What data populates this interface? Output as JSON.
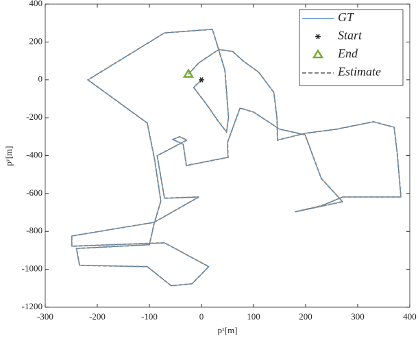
{
  "chart_data": {
    "type": "line",
    "x_label": "pˣ[m]",
    "y_label": "pʸ[m]",
    "xlim": [
      -300,
      400
    ],
    "xticks": [
      -300,
      -200,
      -100,
      0,
      100,
      200,
      300,
      400
    ],
    "ylim": [
      -1200,
      400
    ],
    "yticks": [
      -1200,
      -1000,
      -800,
      -600,
      -400,
      -200,
      0,
      200,
      400
    ],
    "legend": "upper right",
    "series": [
      {
        "name": "GT",
        "style": "solid",
        "color": "#2f7bbf",
        "x": [
          0,
          -15,
          10,
          30,
          48,
          52,
          45,
          33,
          60,
          80,
          110,
          139,
          145,
          146,
          199,
          260,
          330,
          370,
          376,
          383,
          271,
          230,
          179,
          271,
          230,
          199,
          150,
          100,
          74,
          50,
          51,
          -29,
          -35,
          -55,
          -42,
          -28,
          -40,
          -85,
          -71,
          -5,
          -91,
          -249,
          -249,
          -71,
          14,
          -18,
          -58,
          -104,
          -234,
          -240,
          -100,
          -91,
          -78,
          -90,
          -104,
          -218,
          -71,
          21,
          33,
          -5,
          -25
        ],
        "y": [
          0,
          -40,
          -130,
          -210,
          -275,
          -200,
          50,
          160,
          150,
          100,
          40,
          -66,
          -200,
          -318,
          -282,
          -260,
          -221,
          -250,
          -391,
          -618,
          -618,
          -665,
          -697,
          -643,
          -520,
          -290,
          -260,
          -170,
          -149,
          -330,
          -409,
          -452,
          -340,
          -315,
          -300,
          -318,
          -335,
          -400,
          -625,
          -618,
          -752,
          -824,
          -878,
          -860,
          -986,
          -1076,
          -1087,
          -986,
          -979,
          -890,
          -870,
          -760,
          -640,
          -420,
          -228,
          0,
          248,
          267,
          160,
          90,
          30
        ]
      },
      {
        "name": "Start",
        "style": "asterisk",
        "color": "#222222",
        "x": [
          0
        ],
        "y": [
          0
        ]
      },
      {
        "name": "End",
        "style": "triangle",
        "color": "#77ac30",
        "x": [
          -25
        ],
        "y": [
          30
        ]
      },
      {
        "name": "Estimate",
        "style": "dashed",
        "color": "#8a8a8a",
        "x": [
          0,
          -15,
          10,
          30,
          48,
          52,
          45,
          33,
          60,
          80,
          110,
          139,
          145,
          146,
          199,
          260,
          330,
          370,
          376,
          383,
          271,
          230,
          179,
          271,
          230,
          199,
          150,
          100,
          74,
          50,
          51,
          -29,
          -35,
          -55,
          -42,
          -28,
          -40,
          -85,
          -71,
          -5,
          -91,
          -249,
          -249,
          -71,
          14,
          -18,
          -58,
          -104,
          -234,
          -240,
          -100,
          -91,
          -78,
          -90,
          -104,
          -218,
          -71,
          21,
          33,
          -5,
          -25
        ],
        "y": [
          0,
          -40,
          -130,
          -210,
          -275,
          -200,
          50,
          160,
          150,
          100,
          40,
          -66,
          -200,
          -318,
          -282,
          -260,
          -221,
          -250,
          -391,
          -618,
          -618,
          -665,
          -697,
          -643,
          -520,
          -290,
          -260,
          -170,
          -149,
          -330,
          -409,
          -452,
          -340,
          -315,
          -300,
          -318,
          -335,
          -400,
          -625,
          -618,
          -752,
          -824,
          -878,
          -860,
          -986,
          -1076,
          -1087,
          -986,
          -979,
          -890,
          -870,
          -760,
          -640,
          -420,
          -228,
          0,
          248,
          267,
          160,
          90,
          30
        ]
      }
    ]
  }
}
